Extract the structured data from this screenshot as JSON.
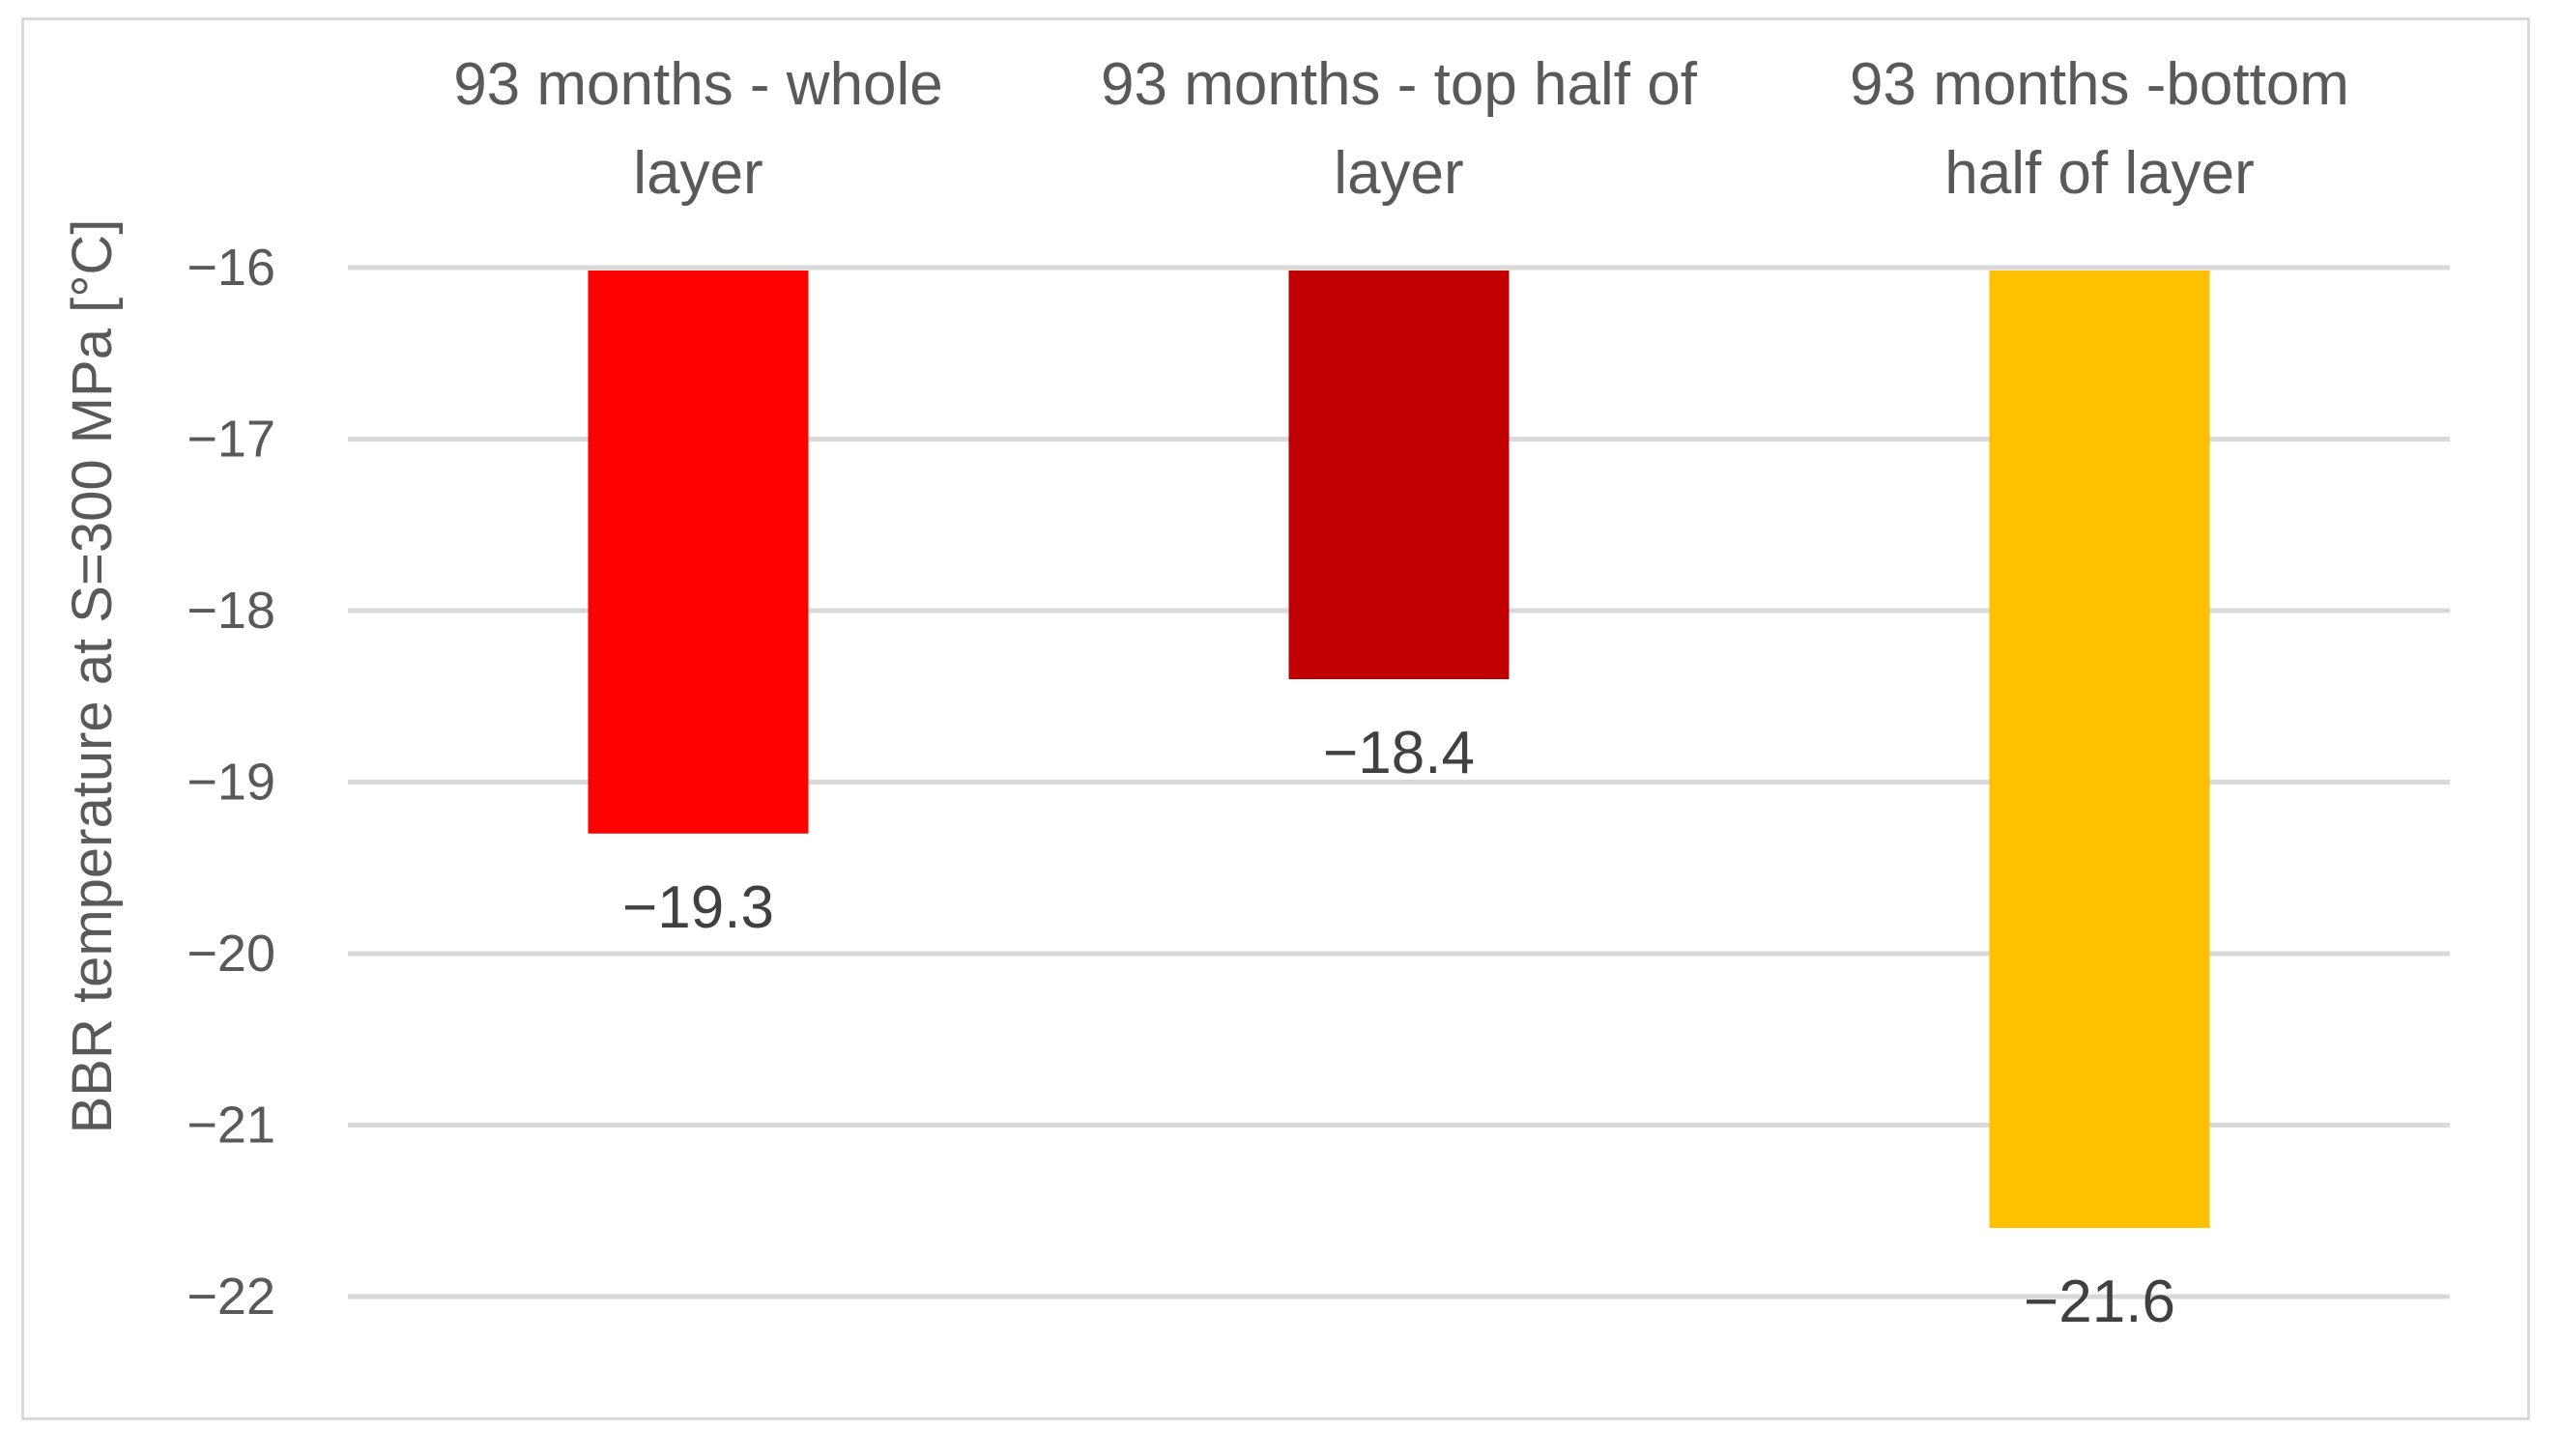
{
  "chart_data": {
    "type": "bar",
    "categories": [
      [
        "93 months - whole",
        "layer"
      ],
      [
        "93 months - top half of",
        "layer"
      ],
      [
        "93 months -bottom",
        "half of layer"
      ]
    ],
    "values": [
      -19.3,
      -18.4,
      -21.6
    ],
    "data_labels": [
      "−19.3",
      "−18.4",
      "−21.6"
    ],
    "colors": [
      "#ff0000",
      "#c00000",
      "#ffc000"
    ],
    "ylabel": "BBR temperature at S=300 MPa [°C]",
    "ylim": [
      -22,
      -16
    ],
    "yticks": [
      -16,
      -17,
      -18,
      -19,
      -20,
      -21,
      -22
    ],
    "ytick_labels": [
      "−16",
      "−17",
      "−18",
      "−19",
      "−20",
      "−21",
      "−22"
    ],
    "x_axis_position": "top",
    "grid": true,
    "legend": "none"
  }
}
